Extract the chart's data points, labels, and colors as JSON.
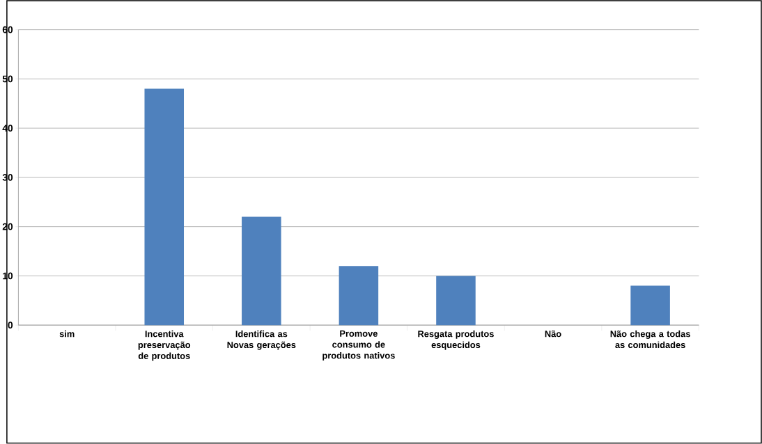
{
  "chart_data": {
    "type": "bar",
    "categories": [
      "sim",
      "Incentiva preservação de produtos",
      "Identifica as Novas gerações",
      "Promove consumo de produtos nativos",
      "Resgata produtos esquecidos",
      "Não",
      "Não chega a todas as comunidades"
    ],
    "values": [
      0,
      48,
      22,
      12,
      10,
      0,
      8
    ],
    "color": "#4f81bd",
    "ylim": [
      0,
      60
    ],
    "yticks": [
      0,
      10,
      20,
      30,
      40,
      50,
      60
    ],
    "grid": "y"
  }
}
